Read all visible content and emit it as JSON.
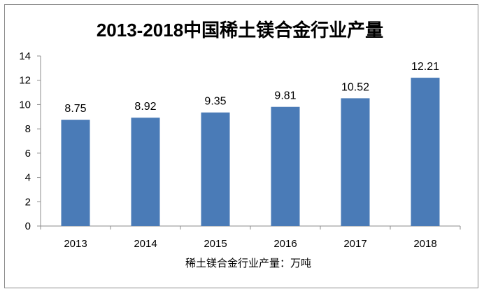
{
  "chart_data": {
    "type": "bar",
    "title": "2013-2018中国稀土镁合金行业产量",
    "xlabel": "稀土镁合金行业产量：万吨",
    "ylabel": "",
    "categories": [
      "2013",
      "2014",
      "2015",
      "2016",
      "2017",
      "2018"
    ],
    "values": [
      8.75,
      8.92,
      9.35,
      9.81,
      10.52,
      12.21
    ],
    "data_labels": [
      "8.75",
      "8.92",
      "9.35",
      "9.81",
      "10.52",
      "12.21"
    ],
    "ylim": [
      0,
      14
    ],
    "yticks": [
      "0",
      "2",
      "4",
      "6",
      "8",
      "10",
      "12",
      "14"
    ],
    "grid": false,
    "legend": "none",
    "bar_color": "#4A7BB7"
  }
}
